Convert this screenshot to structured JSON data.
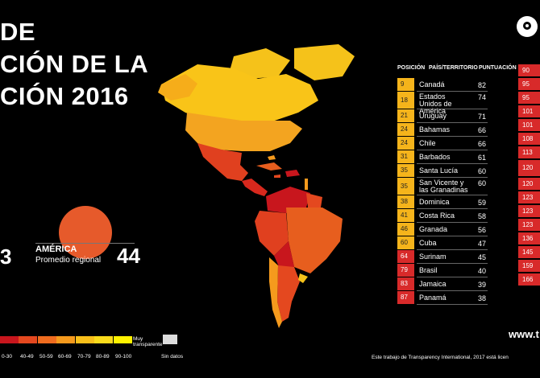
{
  "title": {
    "line1": "DE",
    "line2": "CIÓN DE LA",
    "line3": "CIÓN 2016"
  },
  "left_score": "3",
  "region": {
    "name": "AMÉRICA",
    "subtitle": "Promedio regional",
    "score": "44"
  },
  "legend": {
    "labels": [
      "0-30",
      "40-49",
      "50-59",
      "60-69",
      "70-79",
      "80-89",
      "90-100"
    ],
    "end_label_line1": "Muy",
    "end_label_line2": "transparente",
    "no_data": "Sin datos",
    "colors": [
      "#c8161d",
      "#e4481f",
      "#ef6c1f",
      "#f59a1d",
      "#f8bf1a",
      "#fadb1c",
      "#fff200"
    ]
  },
  "table": {
    "headers": {
      "position": "POSICIÓN",
      "country": "PAÍS/TERRITORIO",
      "score": "PUNTUACIÓN"
    },
    "rows": [
      {
        "rank": "9",
        "country": "Canadá",
        "score": "82"
      },
      {
        "rank": "18",
        "country": "Estados Unidos de América",
        "score": "74"
      },
      {
        "rank": "21",
        "country": "Uruguay",
        "score": "71"
      },
      {
        "rank": "24",
        "country": "Bahamas",
        "score": "66"
      },
      {
        "rank": "24",
        "country": "Chile",
        "score": "66"
      },
      {
        "rank": "31",
        "country": "Barbados",
        "score": "61"
      },
      {
        "rank": "35",
        "country": "Santa Lucía",
        "score": "60"
      },
      {
        "rank": "35",
        "country": "San Vicente y las Granadinas",
        "score": "60"
      },
      {
        "rank": "38",
        "country": "Dominica",
        "score": "59"
      },
      {
        "rank": "41",
        "country": "Costa Rica",
        "score": "58"
      },
      {
        "rank": "46",
        "country": "Granada",
        "score": "56"
      },
      {
        "rank": "60",
        "country": "Cuba",
        "score": "47"
      },
      {
        "rank": "64",
        "country": "Surinam",
        "score": "45"
      },
      {
        "rank": "79",
        "country": "Brasil",
        "score": "40"
      },
      {
        "rank": "83",
        "country": "Jamaica",
        "score": "39"
      },
      {
        "rank": "87",
        "country": "Panamá",
        "score": "38"
      }
    ],
    "second_column_ranks": [
      "90",
      "95",
      "95",
      "101",
      "101",
      "108",
      "113",
      "120",
      "120",
      "123",
      "123",
      "123",
      "136",
      "145",
      "159",
      "166"
    ]
  },
  "website": "www.t",
  "footer": "Este trabajo de Transparency International, 2017 está licen",
  "colors": {
    "rank_badge_top": "#f5b41b",
    "rank_badge_red": "#d82a2a",
    "region_circle": "#e65a2b"
  }
}
